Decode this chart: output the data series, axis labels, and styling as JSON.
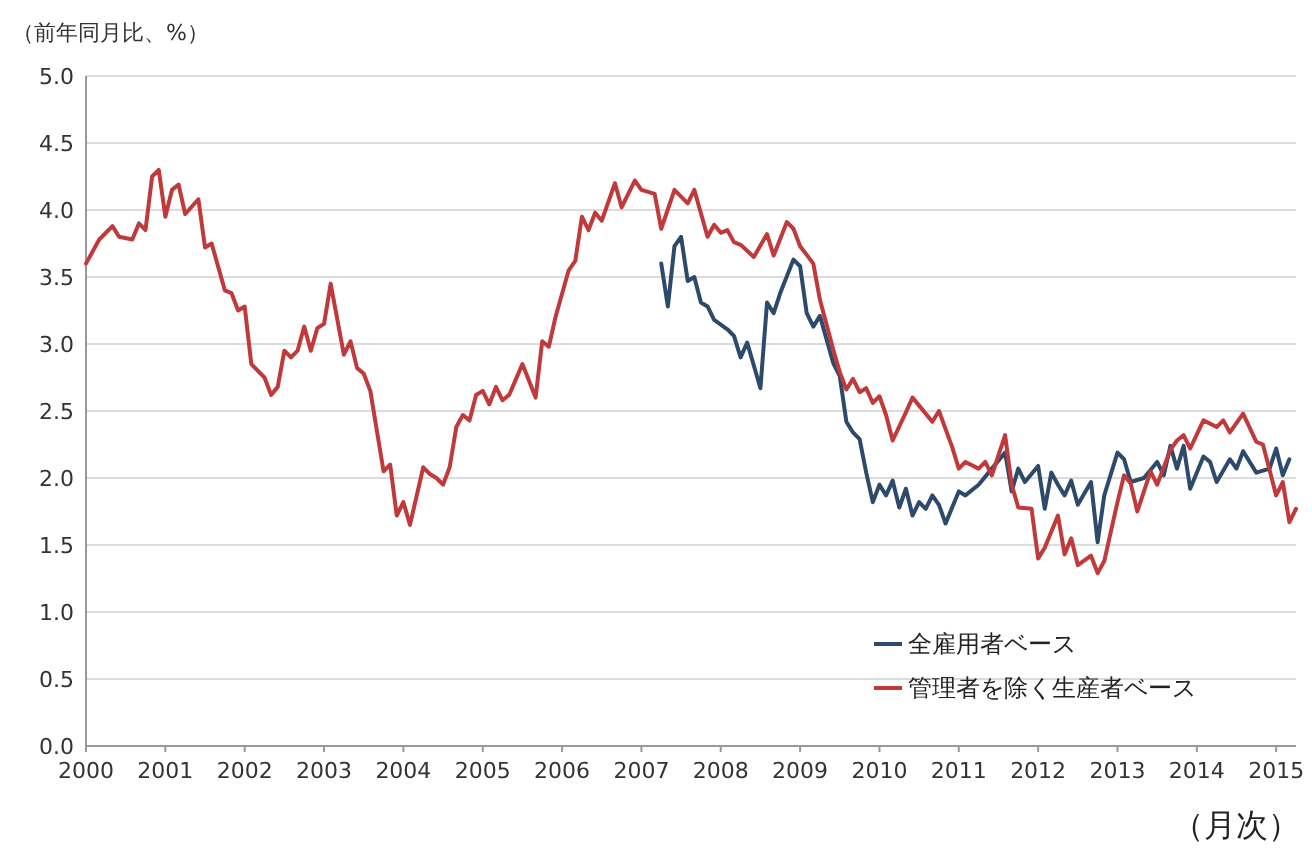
{
  "chart_data": {
    "type": "line",
    "ylabel": "（前年同月比、%）",
    "xlabel": "（月次）",
    "xlim": [
      "2000-01",
      "2015-04"
    ],
    "xticks": [
      "2000",
      "2001",
      "2002",
      "2003",
      "2004",
      "2005",
      "2006",
      "2007",
      "2008",
      "2009",
      "2010",
      "2011",
      "2012",
      "2013",
      "2014",
      "2015"
    ],
    "ylim": [
      0,
      5
    ],
    "yticks": [
      {
        "value": 0,
        "label": "0.0"
      },
      {
        "value": 0.5,
        "label": "0.5"
      },
      {
        "value": 1,
        "label": "1.0"
      },
      {
        "value": 1.5,
        "label": "1.5"
      },
      {
        "value": 2,
        "label": "2.0"
      },
      {
        "value": 2.5,
        "label": "2.5"
      },
      {
        "value": 3,
        "label": "3.0"
      },
      {
        "value": 3.5,
        "label": "3.5"
      },
      {
        "value": 4,
        "label": "4.0"
      },
      {
        "value": 4.5,
        "label": "4.5"
      },
      {
        "value": 5,
        "label": "5.0"
      }
    ],
    "grid": "y",
    "legend": "bottom right",
    "marker": "none",
    "line_style": "solid",
    "series": [
      {
        "name": "全雇用者ベース",
        "color": "#2e4a6b",
        "x": [
          "2007-04",
          "2007-05",
          "2007-06",
          "2007-07",
          "2007-08",
          "2007-09",
          "2007-10",
          "2007-11",
          "2007-12",
          "2008-02",
          "2008-03",
          "2008-04",
          "2008-05",
          "2008-07",
          "2008-08",
          "2008-09",
          "2008-10",
          "2008-12",
          "2009-01",
          "2009-02",
          "2009-03",
          "2009-04",
          "2009-06",
          "2009-07",
          "2009-08",
          "2009-09",
          "2009-10",
          "2009-11",
          "2009-12",
          "2010-01",
          "2010-02",
          "2010-03",
          "2010-04",
          "2010-05",
          "2010-06",
          "2010-07",
          "2010-08",
          "2010-09",
          "2010-10",
          "2010-11",
          "2011-01",
          "2011-02",
          "2011-04",
          "2011-06",
          "2011-08",
          "2011-09",
          "2011-10",
          "2011-11",
          "2012-01",
          "2012-02",
          "2012-03",
          "2012-04",
          "2012-05",
          "2012-06",
          "2012-07",
          "2012-09",
          "2012-10",
          "2012-11",
          "2013-01",
          "2013-02",
          "2013-03",
          "2013-05",
          "2013-07",
          "2013-08",
          "2013-09",
          "2013-10",
          "2013-11",
          "2013-12",
          "2014-02",
          "2014-03",
          "2014-04",
          "2014-06",
          "2014-07",
          "2014-08",
          "2014-10",
          "2014-12",
          "2015-01",
          "2015-02",
          "2015-03"
        ],
        "values": [
          3.6,
          3.28,
          3.73,
          3.8,
          3.47,
          3.5,
          3.31,
          3.28,
          3.18,
          3.11,
          3.06,
          2.9,
          3.01,
          2.67,
          3.31,
          3.23,
          3.38,
          3.63,
          3.58,
          3.23,
          3.13,
          3.21,
          2.86,
          2.76,
          2.42,
          2.34,
          2.29,
          2.04,
          1.82,
          1.95,
          1.87,
          1.98,
          1.78,
          1.92,
          1.72,
          1.82,
          1.77,
          1.87,
          1.8,
          1.66,
          1.9,
          1.87,
          1.95,
          2.07,
          2.19,
          1.9,
          2.07,
          1.97,
          2.09,
          1.77,
          2.04,
          1.95,
          1.87,
          1.98,
          1.8,
          1.97,
          1.52,
          1.87,
          2.19,
          2.14,
          1.97,
          2.0,
          2.12,
          2.02,
          2.24,
          2.07,
          2.24,
          1.92,
          2.16,
          2.12,
          1.97,
          2.14,
          2.07,
          2.2,
          2.04,
          2.07,
          2.22,
          2.02,
          2.14
        ]
      },
      {
        "name": "管理者を除く生産者ベース",
        "color": "#c0393b",
        "x": [
          "2000-01",
          "2000-03",
          "2000-05",
          "2000-06",
          "2000-08",
          "2000-09",
          "2000-10",
          "2000-11",
          "2000-12",
          "2001-01",
          "2001-02",
          "2001-03",
          "2001-04",
          "2001-06",
          "2001-07",
          "2001-08",
          "2001-10",
          "2001-11",
          "2001-12",
          "2002-01",
          "2002-02",
          "2002-04",
          "2002-05",
          "2002-06",
          "2002-07",
          "2002-08",
          "2002-09",
          "2002-10",
          "2002-11",
          "2002-12",
          "2003-01",
          "2003-02",
          "2003-04",
          "2003-05",
          "2003-06",
          "2003-07",
          "2003-08",
          "2003-10",
          "2003-11",
          "2003-12",
          "2004-01",
          "2004-02",
          "2004-04",
          "2004-05",
          "2004-06",
          "2004-07",
          "2004-08",
          "2004-09",
          "2004-10",
          "2004-11",
          "2004-12",
          "2005-01",
          "2005-02",
          "2005-03",
          "2005-04",
          "2005-05",
          "2005-07",
          "2005-09",
          "2005-10",
          "2005-11",
          "2005-12",
          "2006-02",
          "2006-03",
          "2006-04",
          "2006-05",
          "2006-06",
          "2006-07",
          "2006-09",
          "2006-10",
          "2006-12",
          "2007-01",
          "2007-03",
          "2007-04",
          "2007-06",
          "2007-08",
          "2007-09",
          "2007-11",
          "2007-12",
          "2008-01",
          "2008-02",
          "2008-03",
          "2008-04",
          "2008-06",
          "2008-08",
          "2008-09",
          "2008-11",
          "2008-12",
          "2009-01",
          "2009-03",
          "2009-04",
          "2009-06",
          "2009-07",
          "2009-08",
          "2009-09",
          "2009-10",
          "2009-11",
          "2009-12",
          "2010-01",
          "2010-02",
          "2010-03",
          "2010-05",
          "2010-06",
          "2010-07",
          "2010-09",
          "2010-10",
          "2010-12",
          "2011-01",
          "2011-02",
          "2011-04",
          "2011-05",
          "2011-06",
          "2011-08",
          "2011-09",
          "2011-10",
          "2011-12",
          "2012-01",
          "2012-02",
          "2012-04",
          "2012-05",
          "2012-06",
          "2012-07",
          "2012-09",
          "2012-10",
          "2012-11",
          "2013-01",
          "2013-02",
          "2013-03",
          "2013-04",
          "2013-06",
          "2013-07",
          "2013-09",
          "2013-10",
          "2013-11",
          "2013-12",
          "2014-02",
          "2014-04",
          "2014-05",
          "2014-06",
          "2014-08",
          "2014-10",
          "2014-11",
          "2015-01",
          "2015-02",
          "2015-03",
          "2015-04"
        ],
        "values": [
          3.6,
          3.78,
          3.88,
          3.8,
          3.78,
          3.9,
          3.85,
          4.25,
          4.3,
          3.95,
          4.15,
          4.19,
          3.97,
          4.08,
          3.72,
          3.75,
          3.4,
          3.38,
          3.25,
          3.28,
          2.85,
          2.75,
          2.62,
          2.68,
          2.95,
          2.9,
          2.95,
          3.13,
          2.95,
          3.12,
          3.15,
          3.45,
          2.92,
          3.02,
          2.82,
          2.78,
          2.65,
          2.05,
          2.1,
          1.72,
          1.82,
          1.65,
          2.08,
          2.03,
          2.0,
          1.95,
          2.08,
          2.38,
          2.47,
          2.43,
          2.62,
          2.65,
          2.55,
          2.68,
          2.58,
          2.62,
          2.85,
          2.6,
          3.02,
          2.98,
          3.2,
          3.55,
          3.62,
          3.95,
          3.85,
          3.98,
          3.92,
          4.2,
          4.02,
          4.22,
          4.15,
          4.12,
          3.86,
          4.15,
          4.05,
          4.15,
          3.8,
          3.89,
          3.83,
          3.85,
          3.76,
          3.74,
          3.65,
          3.82,
          3.66,
          3.91,
          3.86,
          3.73,
          3.6,
          3.33,
          2.96,
          2.79,
          2.66,
          2.74,
          2.64,
          2.67,
          2.56,
          2.61,
          2.47,
          2.28,
          2.49,
          2.6,
          2.54,
          2.42,
          2.5,
          2.23,
          2.07,
          2.12,
          2.07,
          2.12,
          2.02,
          2.32,
          1.95,
          1.78,
          1.77,
          1.4,
          1.48,
          1.72,
          1.43,
          1.55,
          1.35,
          1.42,
          1.29,
          1.38,
          1.82,
          2.02,
          1.96,
          1.75,
          2.05,
          1.95,
          2.21,
          2.28,
          2.32,
          2.22,
          2.43,
          2.38,
          2.43,
          2.34,
          2.48,
          2.27,
          2.25,
          1.87,
          1.97,
          1.67,
          1.77
        ]
      }
    ]
  }
}
